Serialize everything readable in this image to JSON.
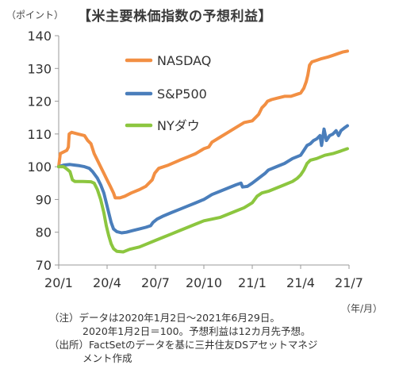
{
  "header": {
    "unit_label": "（ポイント）",
    "title": "【米主要株価指数の予想利益】"
  },
  "x_unit_label": "（年/月）",
  "notes": {
    "line1": "（注）データは2020年1月2日～2021年6月29日。",
    "line2": "2020年1月2日＝100。予想利益は12カ月先予想。",
    "line3": "（出所）FactSetのデータを基に三井住友DSアセットマネジ",
    "line4": "メント作成"
  },
  "chart_data": {
    "type": "line",
    "title": "【米主要株価指数の予想利益】",
    "ylabel": "（ポイント）",
    "xlabel": "（年/月）",
    "ylim": [
      70,
      140
    ],
    "yticks": [
      70,
      80,
      90,
      100,
      110,
      120,
      130,
      140
    ],
    "x_tick_labels": [
      "20/1",
      "20/4",
      "20/7",
      "20/10",
      "21/1",
      "21/4",
      "21/7"
    ],
    "x_tick_months": [
      0,
      3,
      6,
      9,
      12,
      15,
      18
    ],
    "grid": false,
    "legend_placement": "inside-top-left",
    "series": [
      {
        "name": "NASDAQ",
        "color": "#f28f43",
        "points": [
          [
            0.0,
            100
          ],
          [
            0.1,
            104
          ],
          [
            0.3,
            104.5
          ],
          [
            0.5,
            105
          ],
          [
            0.6,
            106
          ],
          [
            0.65,
            110
          ],
          [
            0.8,
            110.5
          ],
          [
            1.2,
            110
          ],
          [
            1.6,
            109.5
          ],
          [
            1.8,
            108
          ],
          [
            2.0,
            107
          ],
          [
            2.2,
            104
          ],
          [
            2.5,
            101
          ],
          [
            2.8,
            98
          ],
          [
            3.0,
            96
          ],
          [
            3.2,
            94
          ],
          [
            3.4,
            92
          ],
          [
            3.5,
            90.5
          ],
          [
            3.8,
            90.5
          ],
          [
            4.1,
            91
          ],
          [
            4.5,
            92
          ],
          [
            5.0,
            93
          ],
          [
            5.4,
            94
          ],
          [
            5.7,
            95.5
          ],
          [
            5.8,
            96
          ],
          [
            5.95,
            98
          ],
          [
            6.2,
            99.5
          ],
          [
            6.8,
            100.5
          ],
          [
            7.5,
            102
          ],
          [
            8.0,
            103
          ],
          [
            8.5,
            104
          ],
          [
            9.0,
            105.5
          ],
          [
            9.3,
            106
          ],
          [
            9.5,
            107.5
          ],
          [
            10.0,
            109
          ],
          [
            10.5,
            110.5
          ],
          [
            11.0,
            112
          ],
          [
            11.5,
            113.5
          ],
          [
            12.0,
            114
          ],
          [
            12.2,
            115
          ],
          [
            12.4,
            116
          ],
          [
            12.6,
            118
          ],
          [
            12.8,
            119
          ],
          [
            12.95,
            120
          ],
          [
            13.2,
            120.5
          ],
          [
            13.6,
            121
          ],
          [
            14.0,
            121.5
          ],
          [
            14.4,
            121.5
          ],
          [
            14.7,
            122
          ],
          [
            15.0,
            122.5
          ],
          [
            15.2,
            124
          ],
          [
            15.35,
            126
          ],
          [
            15.45,
            128
          ],
          [
            15.55,
            131
          ],
          [
            15.7,
            132
          ],
          [
            16.0,
            132.5
          ],
          [
            16.3,
            133
          ],
          [
            16.7,
            133.5
          ],
          [
            17.0,
            134
          ],
          [
            17.3,
            134.5
          ],
          [
            17.6,
            135
          ],
          [
            17.9,
            135.3
          ]
        ]
      },
      {
        "name": "S&P500",
        "color": "#4a7ebb",
        "points": [
          [
            0.0,
            100
          ],
          [
            0.3,
            100.5
          ],
          [
            0.7,
            100.7
          ],
          [
            1.0,
            100.5
          ],
          [
            1.3,
            100.3
          ],
          [
            1.6,
            100
          ],
          [
            1.9,
            99.5
          ],
          [
            2.1,
            98.5
          ],
          [
            2.4,
            96.5
          ],
          [
            2.6,
            94.5
          ],
          [
            2.8,
            92
          ],
          [
            2.95,
            89
          ],
          [
            3.1,
            86
          ],
          [
            3.25,
            83
          ],
          [
            3.4,
            81
          ],
          [
            3.6,
            80.2
          ],
          [
            3.9,
            79.8
          ],
          [
            4.2,
            80
          ],
          [
            4.6,
            80.5
          ],
          [
            5.0,
            81
          ],
          [
            5.4,
            81.5
          ],
          [
            5.7,
            82
          ],
          [
            5.85,
            83
          ],
          [
            6.1,
            84
          ],
          [
            6.5,
            85
          ],
          [
            7.0,
            86
          ],
          [
            7.5,
            87
          ],
          [
            8.0,
            88
          ],
          [
            8.5,
            89
          ],
          [
            9.0,
            90
          ],
          [
            9.5,
            91.5
          ],
          [
            10.0,
            92.5
          ],
          [
            10.5,
            93.5
          ],
          [
            11.0,
            94.5
          ],
          [
            11.3,
            95
          ],
          [
            11.4,
            93.8
          ],
          [
            11.7,
            94
          ],
          [
            12.0,
            95
          ],
          [
            12.4,
            96.5
          ],
          [
            12.8,
            98
          ],
          [
            13.0,
            99
          ],
          [
            13.5,
            100
          ],
          [
            14.0,
            101
          ],
          [
            14.5,
            102.5
          ],
          [
            15.0,
            103.5
          ],
          [
            15.2,
            105
          ],
          [
            15.4,
            106.5
          ],
          [
            15.6,
            107
          ],
          [
            15.8,
            108
          ],
          [
            16.0,
            108.5
          ],
          [
            16.2,
            109.5
          ],
          [
            16.3,
            106.5
          ],
          [
            16.45,
            111.5
          ],
          [
            16.6,
            108
          ],
          [
            16.8,
            109.5
          ],
          [
            17.0,
            110
          ],
          [
            17.2,
            111
          ],
          [
            17.35,
            109.5
          ],
          [
            17.5,
            111
          ],
          [
            17.7,
            111.8
          ],
          [
            17.9,
            112.5
          ]
        ]
      },
      {
        "name": "NYダウ",
        "color": "#8cc63f",
        "points": [
          [
            0.0,
            100
          ],
          [
            0.3,
            100
          ],
          [
            0.45,
            99.5
          ],
          [
            0.7,
            98.5
          ],
          [
            0.85,
            96
          ],
          [
            1.0,
            95.5
          ],
          [
            1.5,
            95.5
          ],
          [
            2.0,
            95.4
          ],
          [
            2.2,
            95
          ],
          [
            2.4,
            93
          ],
          [
            2.6,
            90
          ],
          [
            2.8,
            86
          ],
          [
            2.95,
            82
          ],
          [
            3.1,
            79
          ],
          [
            3.25,
            76.5
          ],
          [
            3.4,
            75
          ],
          [
            3.6,
            74.2
          ],
          [
            4.0,
            74
          ],
          [
            4.4,
            74.8
          ],
          [
            5.0,
            75.5
          ],
          [
            5.5,
            76.5
          ],
          [
            6.0,
            77.5
          ],
          [
            6.5,
            78.5
          ],
          [
            7.0,
            79.5
          ],
          [
            7.5,
            80.5
          ],
          [
            8.0,
            81.5
          ],
          [
            8.5,
            82.5
          ],
          [
            9.0,
            83.5
          ],
          [
            9.5,
            84
          ],
          [
            10.0,
            84.5
          ],
          [
            10.5,
            85.5
          ],
          [
            11.0,
            86.5
          ],
          [
            11.5,
            87.5
          ],
          [
            12.0,
            89
          ],
          [
            12.3,
            91
          ],
          [
            12.6,
            92
          ],
          [
            13.0,
            92.5
          ],
          [
            13.5,
            93.5
          ],
          [
            14.0,
            94.5
          ],
          [
            14.5,
            95.5
          ],
          [
            14.8,
            96.5
          ],
          [
            15.0,
            97.5
          ],
          [
            15.2,
            99
          ],
          [
            15.4,
            101
          ],
          [
            15.6,
            102
          ],
          [
            16.0,
            102.5
          ],
          [
            16.5,
            103.5
          ],
          [
            17.0,
            104
          ],
          [
            17.5,
            104.8
          ],
          [
            17.9,
            105.5
          ]
        ]
      }
    ]
  }
}
